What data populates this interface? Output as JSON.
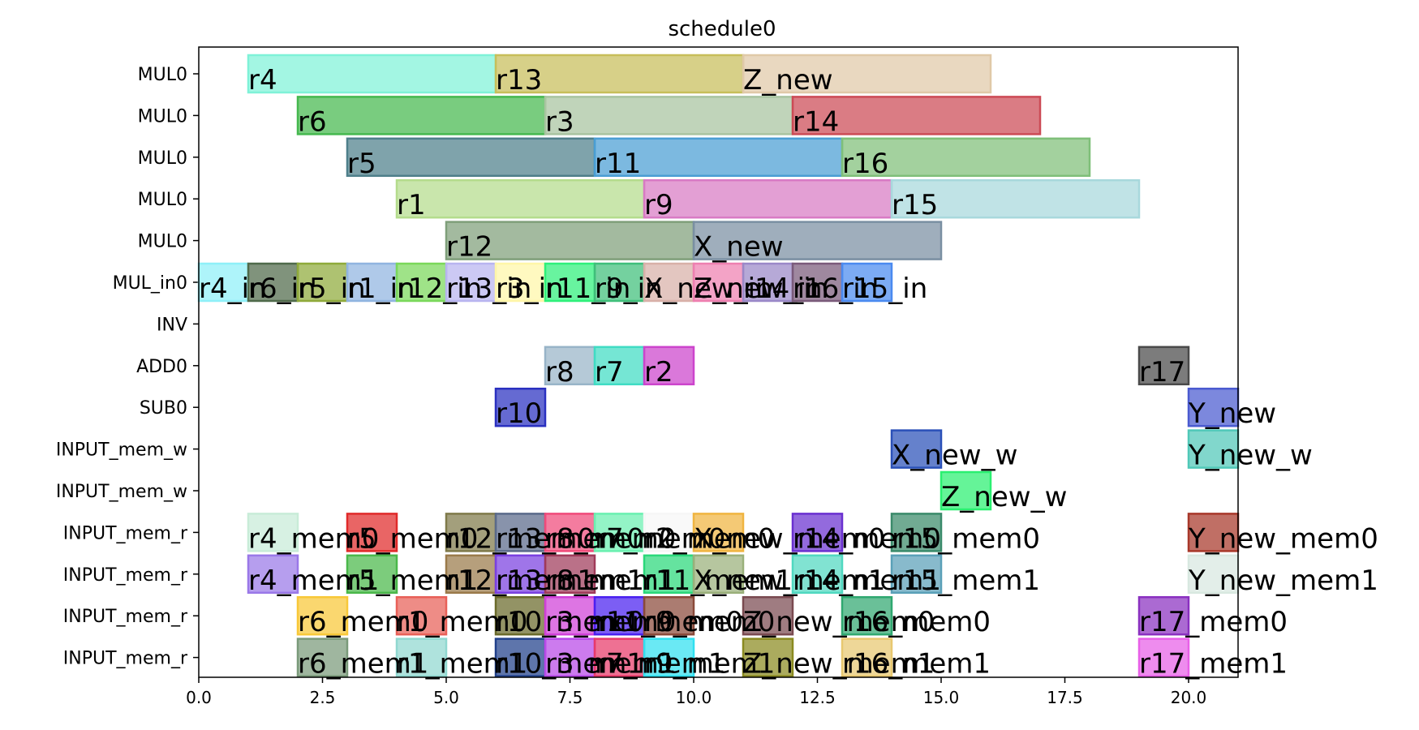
{
  "chart_data": {
    "type": "gantt",
    "title": "schedule0",
    "xlim": [
      0,
      21
    ],
    "xticks": [
      0.0,
      2.5,
      5.0,
      7.5,
      10.0,
      12.5,
      15.0,
      17.5,
      20.0
    ],
    "xtick_labels": [
      "0.0",
      "2.5",
      "5.0",
      "7.5",
      "10.0",
      "12.5",
      "15.0",
      "17.5",
      "20.0"
    ],
    "grid": false,
    "rows": [
      "MUL0",
      "MUL0",
      "MUL0",
      "MUL0",
      "MUL0",
      "MUL_in0",
      "INV",
      "ADD0",
      "SUB0",
      "INPUT_mem_w",
      "INPUT_mem_w",
      "INPUT_mem_r",
      "INPUT_mem_r",
      "INPUT_mem_r",
      "INPUT_mem_r"
    ],
    "tasks": [
      {
        "row": 0,
        "start": 1,
        "end": 6,
        "label": "r4",
        "color": "#7ff2d8"
      },
      {
        "row": 0,
        "start": 6,
        "end": 11,
        "label": "r13",
        "color": "#c7be5a"
      },
      {
        "row": 0,
        "start": 11,
        "end": 16,
        "label": "Z_new",
        "color": "#e0c9a8"
      },
      {
        "row": 1,
        "start": 2,
        "end": 7,
        "label": "r6",
        "color": "#45b84e"
      },
      {
        "row": 1,
        "start": 7,
        "end": 12,
        "label": "r3",
        "color": "#a8c4a0"
      },
      {
        "row": 1,
        "start": 12,
        "end": 17,
        "label": "r14",
        "color": "#cc4a55"
      },
      {
        "row": 2,
        "start": 3,
        "end": 8,
        "label": "r5",
        "color": "#4e7f8a"
      },
      {
        "row": 2,
        "start": 8,
        "end": 13,
        "label": "r11",
        "color": "#4a9ed4"
      },
      {
        "row": 2,
        "start": 13,
        "end": 18,
        "label": "r16",
        "color": "#7fbf79"
      },
      {
        "row": 3,
        "start": 4,
        "end": 9,
        "label": "r1",
        "color": "#b4dc8c"
      },
      {
        "row": 3,
        "start": 9,
        "end": 14,
        "label": "r9",
        "color": "#d87ac4"
      },
      {
        "row": 3,
        "start": 14,
        "end": 19,
        "label": "r15",
        "color": "#a8d8dc"
      },
      {
        "row": 4,
        "start": 5,
        "end": 10,
        "label": "r12",
        "color": "#7f9f7a"
      },
      {
        "row": 4,
        "start": 10,
        "end": 15,
        "label": "X_new",
        "color": "#7a8fa2"
      },
      {
        "row": 5,
        "start": 0,
        "end": 1,
        "label": "r4_in",
        "color": "#8ff0f8"
      },
      {
        "row": 5,
        "start": 1,
        "end": 2,
        "label": "r6_in",
        "color": "#4f6a4a"
      },
      {
        "row": 5,
        "start": 2,
        "end": 3,
        "label": "r5_in",
        "color": "#8faa3a"
      },
      {
        "row": 5,
        "start": 3,
        "end": 4,
        "label": "r1_in",
        "color": "#90b4e0"
      },
      {
        "row": 5,
        "start": 4,
        "end": 5,
        "label": "r12_in",
        "color": "#7ad85a"
      },
      {
        "row": 5,
        "start": 5,
        "end": 6,
        "label": "r13_in",
        "color": "#b8b4f0"
      },
      {
        "row": 5,
        "start": 6,
        "end": 7,
        "label": "r3_in",
        "color": "#fff6a8"
      },
      {
        "row": 5,
        "start": 7,
        "end": 8,
        "label": "r11_in",
        "color": "#2ef07a"
      },
      {
        "row": 5,
        "start": 8,
        "end": 9,
        "label": "r9_in",
        "color": "#3fbf7a"
      },
      {
        "row": 5,
        "start": 9,
        "end": 10,
        "label": "X_new_in",
        "color": "#d8b0a8"
      },
      {
        "row": 5,
        "start": 10,
        "end": 11,
        "label": "Z_new_in",
        "color": "#ee7fb0"
      },
      {
        "row": 5,
        "start": 11,
        "end": 12,
        "label": "r14_in",
        "color": "#9a88c8"
      },
      {
        "row": 5,
        "start": 12,
        "end": 13,
        "label": "r16_in",
        "color": "#7a5a7a"
      },
      {
        "row": 5,
        "start": 13,
        "end": 14,
        "label": "r15_in",
        "color": "#4a8af0"
      },
      {
        "row": 7,
        "start": 7,
        "end": 8,
        "label": "r8",
        "color": "#98b4c8"
      },
      {
        "row": 7,
        "start": 8,
        "end": 9,
        "label": "r7",
        "color": "#40dcc4"
      },
      {
        "row": 7,
        "start": 9,
        "end": 10,
        "label": "r2",
        "color": "#cc44cc"
      },
      {
        "row": 7,
        "start": 19,
        "end": 20,
        "label": "r17",
        "color": "#4a4a4a"
      },
      {
        "row": 8,
        "start": 6,
        "end": 7,
        "label": "r10",
        "color": "#2a30c0"
      },
      {
        "row": 8,
        "start": 20,
        "end": 21,
        "label": "Y_new",
        "color": "#4a5ad0"
      },
      {
        "row": 9,
        "start": 14,
        "end": 15,
        "label": "X_new_w",
        "color": "#2a50b8"
      },
      {
        "row": 9,
        "start": 20,
        "end": 21,
        "label": "Y_new_w",
        "color": "#50c8b8"
      },
      {
        "row": 10,
        "start": 15,
        "end": 16,
        "label": "Z_new_w",
        "color": "#2af070"
      },
      {
        "row": 11,
        "start": 1,
        "end": 2,
        "label": "r4_mem0",
        "color": "#c8ecd8"
      },
      {
        "row": 11,
        "start": 3,
        "end": 4,
        "label": "r5_mem0",
        "color": "#e02a2a"
      },
      {
        "row": 11,
        "start": 5,
        "end": 6,
        "label": "r12_mem0",
        "color": "#7f7a4a"
      },
      {
        "row": 11,
        "start": 6,
        "end": 7,
        "label": "r13_mem0",
        "color": "#5a6a8a"
      },
      {
        "row": 11,
        "start": 7,
        "end": 8,
        "label": "r8_mem0",
        "color": "#f04a7a"
      },
      {
        "row": 11,
        "start": 8,
        "end": 9,
        "label": "r7_mem0",
        "color": "#6af0b0"
      },
      {
        "row": 11,
        "start": 9,
        "end": 10,
        "label": "r2_mem0",
        "color": "#f6f6f6"
      },
      {
        "row": 11,
        "start": 10,
        "end": 11,
        "label": "X_new_mem0",
        "color": "#f0b440"
      },
      {
        "row": 11,
        "start": 12,
        "end": 13,
        "label": "r14_mem0",
        "color": "#6a30d0"
      },
      {
        "row": 11,
        "start": 14,
        "end": 15,
        "label": "r15_mem0",
        "color": "#3a8a6a"
      },
      {
        "row": 11,
        "start": 20,
        "end": 21,
        "label": "Y_new_mem0",
        "color": "#a8382a"
      },
      {
        "row": 12,
        "start": 1,
        "end": 2,
        "label": "r4_mem1",
        "color": "#9a78e8"
      },
      {
        "row": 12,
        "start": 3,
        "end": 4,
        "label": "r5_mem1",
        "color": "#4ab84a"
      },
      {
        "row": 12,
        "start": 5,
        "end": 6,
        "label": "r12_mem1",
        "color": "#9a7a4a"
      },
      {
        "row": 12,
        "start": 6,
        "end": 7,
        "label": "r13_mem1",
        "color": "#7a40e0"
      },
      {
        "row": 12,
        "start": 7,
        "end": 8,
        "label": "r8_mem1",
        "color": "#a03a5a"
      },
      {
        "row": 12,
        "start": 9,
        "end": 10,
        "label": "r11_mem1",
        "color": "#2ad87a"
      },
      {
        "row": 12,
        "start": 10,
        "end": 11,
        "label": "X_new_mem1",
        "color": "#9ab07a"
      },
      {
        "row": 12,
        "start": 12,
        "end": 13,
        "label": "r14_mem1",
        "color": "#50d8c0"
      },
      {
        "row": 12,
        "start": 14,
        "end": 15,
        "label": "r15_mem1",
        "color": "#5aa0b8"
      },
      {
        "row": 12,
        "start": 20,
        "end": 21,
        "label": "Y_new_mem1",
        "color": "#d8e8e0"
      },
      {
        "row": 13,
        "start": 2,
        "end": 3,
        "label": "r6_mem0",
        "color": "#f8c838"
      },
      {
        "row": 13,
        "start": 4,
        "end": 5,
        "label": "r1_mem0",
        "color": "#e86058"
      },
      {
        "row": 13,
        "start": 6,
        "end": 7,
        "label": "r10_mem0",
        "color": "#6a6a2a"
      },
      {
        "row": 13,
        "start": 7,
        "end": 8,
        "label": "r3_mem0",
        "color": "#d040d8"
      },
      {
        "row": 13,
        "start": 8,
        "end": 9,
        "label": "r11_mem0",
        "color": "#4a20f0"
      },
      {
        "row": 13,
        "start": 9,
        "end": 10,
        "label": "r9_mem0",
        "color": "#8a4a3a"
      },
      {
        "row": 13,
        "start": 11,
        "end": 12,
        "label": "Z_new_mem0",
        "color": "#7a4a50"
      },
      {
        "row": 13,
        "start": 13,
        "end": 14,
        "label": "r16_mem0",
        "color": "#30a870"
      },
      {
        "row": 13,
        "start": 19,
        "end": 20,
        "label": "r17_mem0",
        "color": "#8a30c0"
      },
      {
        "row": 14,
        "start": 2,
        "end": 3,
        "label": "r6_mem1",
        "color": "#7a9a7a"
      },
      {
        "row": 14,
        "start": 4,
        "end": 5,
        "label": "r1_mem1",
        "color": "#90d8d0"
      },
      {
        "row": 14,
        "start": 6,
        "end": 7,
        "label": "r10_mem1",
        "color": "#20408a"
      },
      {
        "row": 14,
        "start": 7,
        "end": 8,
        "label": "r3_mem1",
        "color": "#b848e8"
      },
      {
        "row": 14,
        "start": 8,
        "end": 9,
        "label": "r7_mem1",
        "color": "#e83a6a"
      },
      {
        "row": 14,
        "start": 9,
        "end": 10,
        "label": "r9_mem1",
        "color": "#30e0f0"
      },
      {
        "row": 14,
        "start": 11,
        "end": 12,
        "label": "Z_new_mem1",
        "color": "#8a8a20"
      },
      {
        "row": 14,
        "start": 13,
        "end": 14,
        "label": "r16_mem1",
        "color": "#e8c870"
      },
      {
        "row": 14,
        "start": 19,
        "end": 20,
        "label": "r17_mem1",
        "color": "#e860e8"
      }
    ]
  }
}
